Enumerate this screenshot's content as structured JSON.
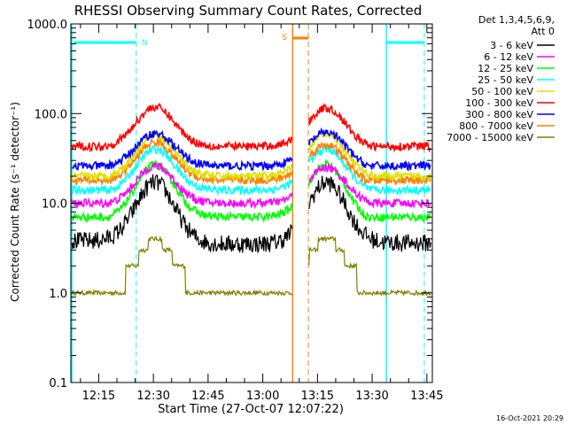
{
  "chart_data": {
    "type": "line",
    "title": "RHESSI Observing Summary Count Rates, Corrected",
    "xlabel": "Start Time (27-Oct-07 12:07:22)",
    "ylabel": "Corrected Count Rate",
    "ylabel_units": "(s⁻¹ detector⁻¹)",
    "y_scale": "log",
    "ylim": [
      0.1,
      1000.0
    ],
    "y_ticks": [
      0.1,
      1.0,
      10.0,
      100.0,
      1000.0
    ],
    "y_tick_labels": [
      "0.1",
      "1.0",
      "10.0",
      "100.0",
      "1000.0"
    ],
    "x_ticks": [
      "12:15",
      "12:30",
      "12:45",
      "13:00",
      "13:15",
      "13:30",
      "13:45"
    ],
    "x_tick_minutes": [
      15,
      30,
      45,
      60,
      75,
      90,
      105
    ],
    "xlim_minutes": [
      7.37,
      106.5
    ],
    "legend_header": [
      "Det 1,3,4,5,6,9,",
      "Att 0"
    ],
    "legend_position": "right",
    "footer_date": "16-Oct-2021 20:29",
    "series": [
      {
        "name": "3 - 6 keV",
        "color": "#000000",
        "peaks": [
          17,
          17
        ],
        "valleys": [
          3.8,
          3.5,
          3.6
        ]
      },
      {
        "name": "6 - 12 keV",
        "color": "#ff00ff",
        "peaks": [
          26,
          25
        ],
        "valleys": [
          9.5,
          10,
          9.5
        ]
      },
      {
        "name": "12 - 25 keV",
        "color": "#00ff00",
        "peaks": [
          27,
          27
        ],
        "valleys": [
          6.5,
          7,
          6
        ]
      },
      {
        "name": "25 - 50 keV",
        "color": "#00ffff",
        "peaks": [
          40,
          40
        ],
        "valleys": [
          13,
          14,
          13
        ]
      },
      {
        "name": "50 - 100 keV",
        "color": "#e0e000",
        "peaks": [
          58,
          60
        ],
        "valleys": [
          19,
          20,
          19
        ]
      },
      {
        "name": "100 - 300 keV",
        "color": "#ff0000",
        "peaks": [
          118,
          115
        ],
        "valleys": [
          42,
          43,
          40
        ]
      },
      {
        "name": "300 - 800 keV",
        "color": "#0000ff",
        "peaks": [
          60,
          62
        ],
        "valleys": [
          25,
          26,
          24
        ]
      },
      {
        "name": "800 - 7000 keV",
        "color": "#ff8000",
        "peaks": [
          48,
          45
        ],
        "valleys": [
          17,
          18,
          16
        ]
      },
      {
        "name": "7000 - 15000 keV",
        "color": "#808000",
        "peaks": [
          3.8,
          4
        ],
        "valleys": [
          1.0,
          1.0,
          1.0
        ]
      }
    ],
    "annotations": [
      {
        "label": "N",
        "color": "#00ffff",
        "start_minute": 7.37,
        "end_minute": 25.3,
        "meaning": "night interval"
      },
      {
        "label": "N",
        "color": "#00ffff",
        "start_minute": 93.9,
        "end_minute": 104.3,
        "meaning": "night interval"
      },
      {
        "label": "S",
        "color": "#ff8000",
        "start_minute": 68.2,
        "end_minute": 72.5,
        "meaning": "SAA interval"
      }
    ]
  }
}
